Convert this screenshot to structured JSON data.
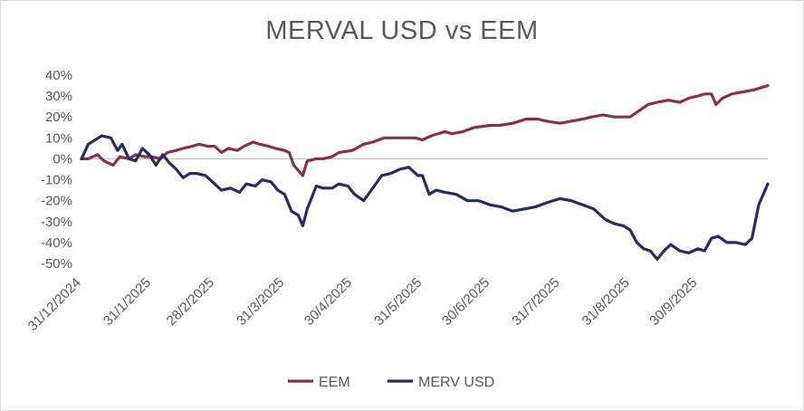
{
  "chart_data": {
    "type": "line",
    "title": "MERVAL USD vs EEM",
    "xlabel": "",
    "ylabel": "",
    "x_tick_labels": [
      "31/12/2024",
      "31/1/2025",
      "28/2/2025",
      "31/3/2025",
      "30/4/2025",
      "31/5/2025",
      "30/6/2025",
      "31/7/2025",
      "31/8/2025",
      "30/9/2025"
    ],
    "y_tick_labels": [
      "40%",
      "30%",
      "20%",
      "10%",
      "0%",
      "-10%",
      "-20%",
      "-30%",
      "-40%",
      "-50%"
    ],
    "ylim": [
      -50,
      40
    ],
    "xlim": [
      "2024-12-31",
      "2025-10-31"
    ],
    "grid": false,
    "legend": "bottom",
    "series": [
      {
        "name": "EEM",
        "color": "#8b2f4f",
        "points": [
          [
            "2024-12-31",
            0
          ],
          [
            "2025-01-03",
            0
          ],
          [
            "2025-01-07",
            2
          ],
          [
            "2025-01-10",
            -1
          ],
          [
            "2025-01-14",
            -3
          ],
          [
            "2025-01-17",
            1
          ],
          [
            "2025-01-21",
            0
          ],
          [
            "2025-01-24",
            2
          ],
          [
            "2025-01-28",
            1
          ],
          [
            "2025-01-31",
            1
          ],
          [
            "2025-02-04",
            0
          ],
          [
            "2025-02-07",
            3
          ],
          [
            "2025-02-11",
            4
          ],
          [
            "2025-02-14",
            5
          ],
          [
            "2025-02-18",
            6
          ],
          [
            "2025-02-21",
            7
          ],
          [
            "2025-02-25",
            6
          ],
          [
            "2025-02-28",
            6
          ],
          [
            "2025-03-03",
            3
          ],
          [
            "2025-03-06",
            5
          ],
          [
            "2025-03-10",
            4
          ],
          [
            "2025-03-13",
            6
          ],
          [
            "2025-03-17",
            8
          ],
          [
            "2025-03-20",
            7
          ],
          [
            "2025-03-24",
            6
          ],
          [
            "2025-03-27",
            5
          ],
          [
            "2025-03-31",
            4
          ],
          [
            "2025-04-02",
            3
          ],
          [
            "2025-04-04",
            -3
          ],
          [
            "2025-04-08",
            -8
          ],
          [
            "2025-04-10",
            -1
          ],
          [
            "2025-04-14",
            0
          ],
          [
            "2025-04-17",
            0
          ],
          [
            "2025-04-21",
            1
          ],
          [
            "2025-04-24",
            3
          ],
          [
            "2025-04-30",
            4
          ],
          [
            "2025-05-05",
            7
          ],
          [
            "2025-05-09",
            8
          ],
          [
            "2025-05-14",
            10
          ],
          [
            "2025-05-19",
            10
          ],
          [
            "2025-05-23",
            10
          ],
          [
            "2025-05-28",
            10
          ],
          [
            "2025-05-31",
            9
          ],
          [
            "2025-06-04",
            11
          ],
          [
            "2025-06-10",
            13
          ],
          [
            "2025-06-13",
            12
          ],
          [
            "2025-06-18",
            13
          ],
          [
            "2025-06-23",
            15
          ],
          [
            "2025-06-30",
            16
          ],
          [
            "2025-07-04",
            16
          ],
          [
            "2025-07-10",
            17
          ],
          [
            "2025-07-16",
            19
          ],
          [
            "2025-07-21",
            19
          ],
          [
            "2025-07-25",
            18
          ],
          [
            "2025-07-31",
            17
          ],
          [
            "2025-08-05",
            18
          ],
          [
            "2025-08-10",
            19
          ],
          [
            "2025-08-14",
            20
          ],
          [
            "2025-08-19",
            21
          ],
          [
            "2025-08-24",
            20
          ],
          [
            "2025-08-31",
            20
          ],
          [
            "2025-09-04",
            23
          ],
          [
            "2025-09-08",
            26
          ],
          [
            "2025-09-12",
            27
          ],
          [
            "2025-09-17",
            28
          ],
          [
            "2025-09-22",
            27
          ],
          [
            "2025-09-26",
            29
          ],
          [
            "2025-09-30",
            30
          ],
          [
            "2025-10-03",
            31
          ],
          [
            "2025-10-06",
            31
          ],
          [
            "2025-10-08",
            26
          ],
          [
            "2025-10-11",
            29
          ],
          [
            "2025-10-15",
            31
          ],
          [
            "2025-10-20",
            32
          ],
          [
            "2025-10-25",
            33
          ],
          [
            "2025-10-31",
            35
          ]
        ]
      },
      {
        "name": "MERV USD",
        "color": "#2b2a63",
        "points": [
          [
            "2024-12-31",
            0
          ],
          [
            "2025-01-03",
            7
          ],
          [
            "2025-01-06",
            9
          ],
          [
            "2025-01-09",
            11
          ],
          [
            "2025-01-13",
            10
          ],
          [
            "2025-01-16",
            4
          ],
          [
            "2025-01-18",
            7
          ],
          [
            "2025-01-21",
            0
          ],
          [
            "2025-01-24",
            -1
          ],
          [
            "2025-01-27",
            5
          ],
          [
            "2025-01-30",
            2
          ],
          [
            "2025-02-02",
            -3
          ],
          [
            "2025-02-05",
            2
          ],
          [
            "2025-02-08",
            -2
          ],
          [
            "2025-02-11",
            -5
          ],
          [
            "2025-02-14",
            -9
          ],
          [
            "2025-02-17",
            -7
          ],
          [
            "2025-02-20",
            -7
          ],
          [
            "2025-02-24",
            -8
          ],
          [
            "2025-02-28",
            -12
          ],
          [
            "2025-03-03",
            -15
          ],
          [
            "2025-03-07",
            -14
          ],
          [
            "2025-03-11",
            -16
          ],
          [
            "2025-03-14",
            -12
          ],
          [
            "2025-03-18",
            -13
          ],
          [
            "2025-03-21",
            -10
          ],
          [
            "2025-03-25",
            -11
          ],
          [
            "2025-03-28",
            -15
          ],
          [
            "2025-03-31",
            -17
          ],
          [
            "2025-04-03",
            -25
          ],
          [
            "2025-04-06",
            -27
          ],
          [
            "2025-04-08",
            -32
          ],
          [
            "2025-04-10",
            -24
          ],
          [
            "2025-04-14",
            -13
          ],
          [
            "2025-04-17",
            -14
          ],
          [
            "2025-04-21",
            -14
          ],
          [
            "2025-04-24",
            -12
          ],
          [
            "2025-04-28",
            -13
          ],
          [
            "2025-05-01",
            -17
          ],
          [
            "2025-05-05",
            -20
          ],
          [
            "2025-05-09",
            -14
          ],
          [
            "2025-05-13",
            -8
          ],
          [
            "2025-05-17",
            -7
          ],
          [
            "2025-05-21",
            -5
          ],
          [
            "2025-05-25",
            -4
          ],
          [
            "2025-05-29",
            -8
          ],
          [
            "2025-05-31",
            -8
          ],
          [
            "2025-06-03",
            -17
          ],
          [
            "2025-06-06",
            -15
          ],
          [
            "2025-06-10",
            -16
          ],
          [
            "2025-06-15",
            -17
          ],
          [
            "2025-06-20",
            -20
          ],
          [
            "2025-06-25",
            -20
          ],
          [
            "2025-06-30",
            -22
          ],
          [
            "2025-07-05",
            -23
          ],
          [
            "2025-07-10",
            -25
          ],
          [
            "2025-07-15",
            -24
          ],
          [
            "2025-07-20",
            -23
          ],
          [
            "2025-07-25",
            -21
          ],
          [
            "2025-07-31",
            -19
          ],
          [
            "2025-08-05",
            -20
          ],
          [
            "2025-08-10",
            -22
          ],
          [
            "2025-08-15",
            -24
          ],
          [
            "2025-08-20",
            -29
          ],
          [
            "2025-08-24",
            -31
          ],
          [
            "2025-08-28",
            -32
          ],
          [
            "2025-08-31",
            -34
          ],
          [
            "2025-09-03",
            -40
          ],
          [
            "2025-09-06",
            -43
          ],
          [
            "2025-09-09",
            -44
          ],
          [
            "2025-09-12",
            -48
          ],
          [
            "2025-09-15",
            -44
          ],
          [
            "2025-09-18",
            -41
          ],
          [
            "2025-09-22",
            -44
          ],
          [
            "2025-09-26",
            -45
          ],
          [
            "2025-09-30",
            -43
          ],
          [
            "2025-10-03",
            -44
          ],
          [
            "2025-10-06",
            -38
          ],
          [
            "2025-10-09",
            -37
          ],
          [
            "2025-10-13",
            -40
          ],
          [
            "2025-10-17",
            -40
          ],
          [
            "2025-10-21",
            -41
          ],
          [
            "2025-10-24",
            -38
          ],
          [
            "2025-10-27",
            -22
          ],
          [
            "2025-10-31",
            -12
          ]
        ]
      }
    ]
  }
}
